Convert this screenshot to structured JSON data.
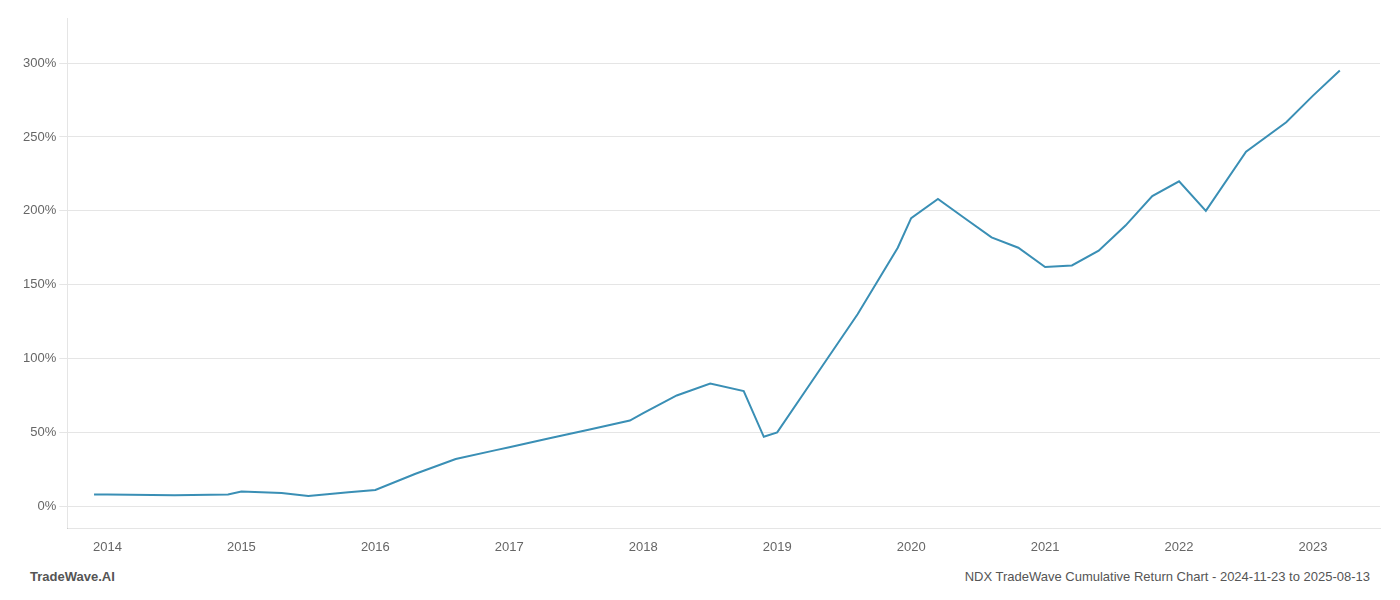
{
  "chart_data": {
    "type": "line",
    "title": "NDX TradeWave Cumulative Return Chart - 2024-11-23 to 2025-08-13",
    "annotations": [
      "TradeWave.AI"
    ],
    "x": [
      2013.9,
      2014.0,
      2014.5,
      2014.9,
      2015.0,
      2015.3,
      2015.5,
      2015.8,
      2016.0,
      2016.3,
      2016.6,
      2016.9,
      2017.0,
      2017.3,
      2017.6,
      2017.9,
      2018.0,
      2018.25,
      2018.5,
      2018.75,
      2018.9,
      2019.0,
      2019.3,
      2019.6,
      2019.9,
      2020.0,
      2020.2,
      2020.4,
      2020.6,
      2020.8,
      2021.0,
      2021.2,
      2021.4,
      2021.6,
      2021.8,
      2022.0,
      2022.2,
      2022.5,
      2022.8,
      2023.0,
      2023.2
    ],
    "values": [
      8.0,
      8.0,
      7.5,
      8.0,
      10.0,
      9.0,
      7.0,
      9.5,
      11.0,
      22.0,
      32.0,
      38.0,
      40.0,
      46.0,
      52.0,
      58.0,
      63.0,
      75.0,
      83.0,
      78.0,
      47.0,
      50.0,
      90.0,
      130.0,
      175.0,
      195.0,
      208.0,
      195.0,
      182.0,
      175.0,
      162.0,
      163.0,
      173.0,
      190.0,
      210.0,
      220.0,
      200.0,
      240.0,
      260.0,
      278.0,
      295.0
    ],
    "color": "#3a8fb5",
    "xlim": [
      2013.7,
      2023.5
    ],
    "ylim": [
      -15,
      330
    ],
    "xticks": [
      2014,
      2015,
      2016,
      2017,
      2018,
      2019,
      2020,
      2021,
      2022,
      2023
    ],
    "yticks": [
      {
        "value": 0,
        "label": "0%"
      },
      {
        "value": 50,
        "label": "50%"
      },
      {
        "value": 100,
        "label": "100%"
      },
      {
        "value": 150,
        "label": "150%"
      },
      {
        "value": 200,
        "label": "200%"
      },
      {
        "value": 250,
        "label": "250%"
      },
      {
        "value": 300,
        "label": "300%"
      }
    ],
    "grid": "y"
  }
}
